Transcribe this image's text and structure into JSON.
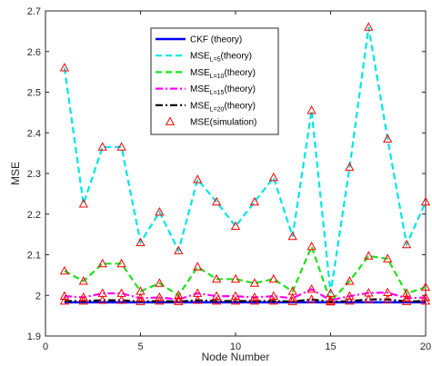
{
  "chart_data": {
    "type": "line",
    "title": "",
    "xlabel": "Node Number",
    "ylabel": "MSE",
    "xlim": [
      0,
      20
    ],
    "ylim": [
      1.9,
      2.7
    ],
    "x_ticks": [
      0,
      5,
      10,
      15,
      20
    ],
    "y_ticks": [
      1.9,
      2,
      2.1,
      2.2,
      2.3,
      2.4,
      2.5,
      2.6,
      2.7
    ],
    "x_tick_labels": [
      "0",
      "5",
      "10",
      "15",
      "20"
    ],
    "y_tick_labels": [
      "1.9",
      "2",
      "2.1",
      "2.2",
      "2.3",
      "2.4",
      "2.5",
      "2.6",
      "2.7"
    ],
    "grid": false,
    "legend_position": "top-center",
    "x": [
      1,
      2,
      3,
      4,
      5,
      6,
      7,
      8,
      9,
      10,
      11,
      12,
      13,
      14,
      15,
      16,
      17,
      18,
      19,
      20
    ],
    "series": [
      {
        "name": "CKF  (theory)",
        "legend_main": "CKF  (theory)",
        "legend_sub": "",
        "legend_tail": "",
        "color": "#0000ff",
        "dash": "solid",
        "values": [
          1.983,
          1.983,
          1.983,
          1.983,
          1.983,
          1.983,
          1.983,
          1.983,
          1.983,
          1.983,
          1.983,
          1.983,
          1.983,
          1.983,
          1.983,
          1.983,
          1.983,
          1.983,
          1.983,
          1.983
        ]
      },
      {
        "name": "MSE L=5 (theory)",
        "legend_main": "MSE",
        "legend_sub": "L=5",
        "legend_tail": "(theory)",
        "color": "#00e5e5",
        "dash": "dashed",
        "values": [
          2.56,
          2.225,
          2.365,
          2.365,
          2.13,
          2.205,
          2.11,
          2.285,
          2.23,
          2.17,
          2.23,
          2.29,
          2.145,
          2.455,
          2.005,
          2.315,
          2.66,
          2.385,
          2.125,
          2.23
        ]
      },
      {
        "name": "MSE L=10 (theory)",
        "legend_main": "MSE",
        "legend_sub": "L=10",
        "legend_tail": "(theory)",
        "color": "#1ee01e",
        "dash": "dashed",
        "values": [
          2.06,
          2.035,
          2.078,
          2.078,
          2.01,
          2.03,
          2.0,
          2.07,
          2.04,
          2.04,
          2.03,
          2.04,
          2.01,
          2.12,
          1.985,
          2.035,
          2.097,
          2.09,
          2.005,
          2.02
        ]
      },
      {
        "name": "MSE L=15 (theory)",
        "legend_main": "MSE",
        "legend_sub": "L=15",
        "legend_tail": "(theory)",
        "color": "#ff00ff",
        "dash": "dashdot",
        "values": [
          1.998,
          1.995,
          2.005,
          2.005,
          1.993,
          1.995,
          1.99,
          2.005,
          1.998,
          1.998,
          1.995,
          1.998,
          1.993,
          2.015,
          1.988,
          1.998,
          2.006,
          2.007,
          1.993,
          1.995
        ]
      },
      {
        "name": "MSE L=20 (theory)",
        "legend_main": "MSE",
        "legend_sub": "L=20",
        "legend_tail": "(theory)",
        "color": "#000000",
        "dash": "dashdot",
        "values": [
          1.986,
          1.986,
          1.988,
          1.988,
          1.985,
          1.986,
          1.985,
          1.988,
          1.986,
          1.986,
          1.986,
          1.986,
          1.985,
          1.99,
          1.984,
          1.986,
          1.99,
          1.99,
          1.985,
          1.986
        ]
      }
    ],
    "simulation": {
      "name": "MSE(simulation)",
      "legend_main": "MSE(simulation)",
      "color": "#ff0000",
      "marker": "triangle",
      "points": [
        {
          "series": 1,
          "values": [
            2.56,
            2.225,
            2.365,
            2.365,
            2.13,
            2.205,
            2.11,
            2.285,
            2.23,
            2.17,
            2.23,
            2.29,
            2.145,
            2.455,
            2.005,
            2.315,
            2.66,
            2.385,
            2.125,
            2.23
          ]
        },
        {
          "series": 2,
          "values": [
            2.06,
            2.035,
            2.078,
            2.078,
            2.01,
            2.03,
            2.0,
            2.07,
            2.04,
            2.04,
            2.03,
            2.04,
            2.01,
            2.12,
            1.985,
            2.035,
            2.097,
            2.09,
            2.005,
            2.02
          ]
        },
        {
          "series": 3,
          "values": [
            1.998,
            1.995,
            2.005,
            2.005,
            1.993,
            1.995,
            1.99,
            2.005,
            1.998,
            1.998,
            1.995,
            1.998,
            1.993,
            2.015,
            1.988,
            1.998,
            2.006,
            2.007,
            1.993,
            1.995
          ]
        },
        {
          "series": 4,
          "values": [
            1.986,
            1.986,
            1.988,
            1.988,
            1.985,
            1.986,
            1.985,
            1.988,
            1.986,
            1.986,
            1.986,
            1.986,
            1.985,
            1.99,
            1.984,
            1.986,
            1.99,
            1.99,
            1.985,
            1.986
          ]
        }
      ]
    }
  }
}
